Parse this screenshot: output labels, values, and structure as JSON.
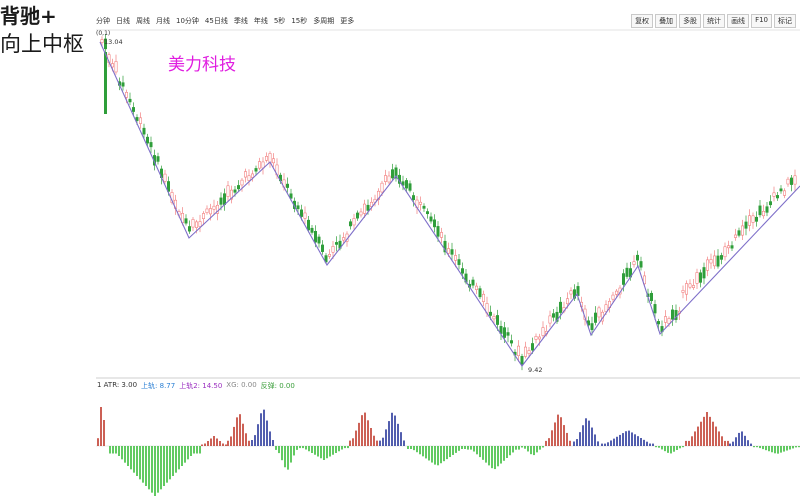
{
  "annotation": {
    "line1": "背驰+",
    "line2": "向上中枢"
  },
  "toolbar": {
    "period_tabs": [
      "分钟",
      "日线",
      "周线",
      "月线",
      "10分钟",
      "45日线",
      "季线",
      "年线",
      "5秒",
      "15秒",
      "多周期",
      "更多"
    ],
    "right_tools": [
      "复权",
      "叠加",
      "多股",
      "统计",
      "画线",
      "F10",
      "标记"
    ]
  },
  "stock": {
    "name": "美力科技"
  },
  "main_chart": {
    "high_price_label": "13.04",
    "low_price_label": "9.42",
    "top_left_label": "(0,1)"
  },
  "indicator": {
    "name": "1 ATR: 3.00",
    "upper": "上轨: 8.77",
    "upper2": "上轨2: 14.50",
    "xg": "XG: 0.00",
    "rebound": "反弹: 0.00"
  },
  "colors": {
    "bull": "#f28080",
    "bear": "#2f9e3a",
    "zigzag": "#7e6fc9",
    "ind_red": "#c0392b",
    "ind_blue": "#27359a",
    "ind_green": "#3bbd3b",
    "stock_name": "#e01de0"
  }
}
